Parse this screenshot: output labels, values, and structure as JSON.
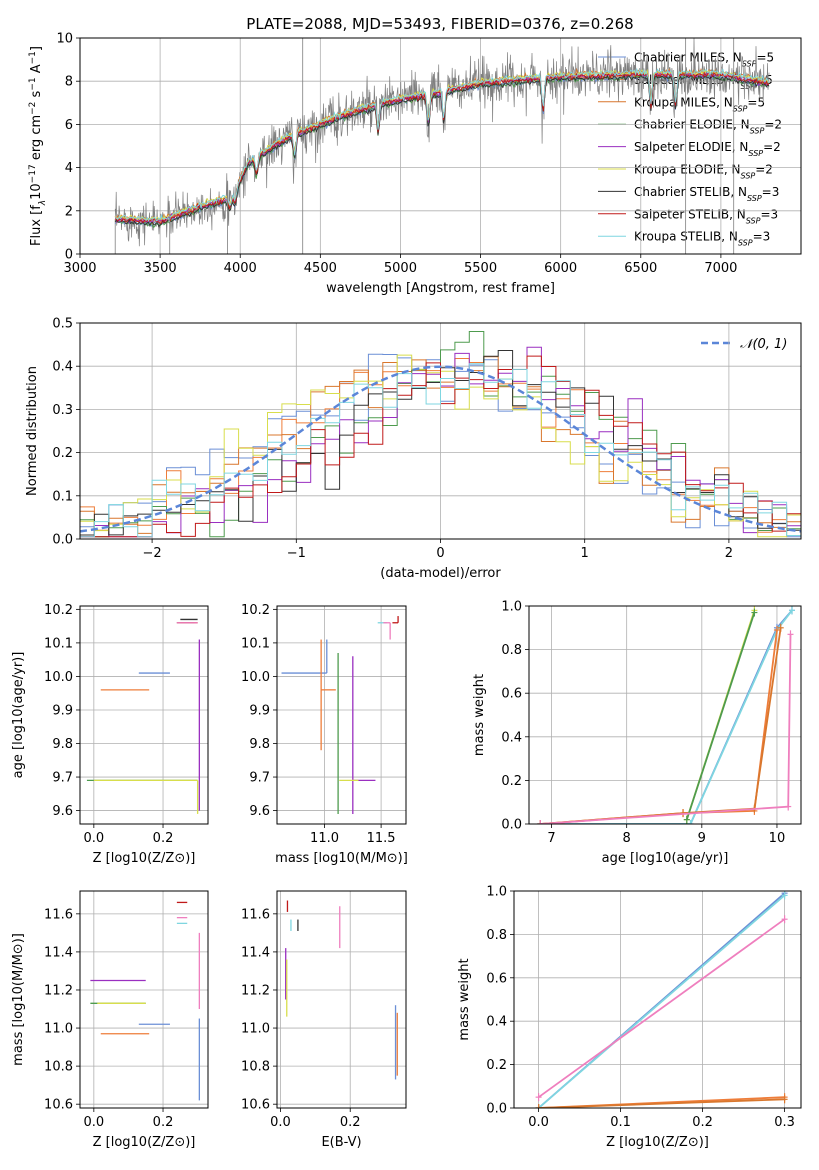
{
  "figure": {
    "title": "PLATE=2088, MJD=53493, FIBERID=0376, z=0.268"
  },
  "models": [
    {
      "name": "Chabrier MILES",
      "nssp": "5",
      "color": "#6b8fd6"
    },
    {
      "name": "Salpeter MILES",
      "nssp": "5",
      "color": "#ee7d3a"
    },
    {
      "name": "Kroupa MILES",
      "nssp": "5",
      "color": "#d9772d"
    },
    {
      "name": "Chabrier ELODIE",
      "nssp": "2",
      "color": "#4e9b4e"
    },
    {
      "name": "Salpeter ELODIE",
      "nssp": "2",
      "color": "#9a2fc0"
    },
    {
      "name": "Kroupa ELODIE",
      "nssp": "2",
      "color": "#d8de4c"
    },
    {
      "name": "Chabrier STELIB",
      "nssp": "3",
      "color": "#333333"
    },
    {
      "name": "Salpeter STELIB",
      "nssp": "3",
      "color": "#c01a1a"
    },
    {
      "name": "Kroupa STELIB",
      "nssp": "3",
      "color": "#7fd6e0"
    }
  ],
  "chart_data": [
    {
      "id": "spectrum",
      "type": "line",
      "xlabel": "wavelength [Angstrom, rest frame]",
      "ylabel_parts": [
        "Flux [f",
        "λ",
        "10",
        "−17",
        " erg cm",
        "−2",
        " s",
        "−1",
        " A",
        "−1",
        "]"
      ],
      "xlim": [
        3000,
        7500
      ],
      "ylim": [
        0,
        10
      ],
      "xticks": [
        3000,
        3500,
        4000,
        4500,
        5000,
        5500,
        6000,
        6500,
        7000
      ],
      "yticks": [
        0,
        2,
        4,
        6,
        8,
        10
      ],
      "grid": true,
      "legend_position": "lower-right",
      "data_color": "#7f7f7f",
      "continuum_knots": [
        [
          3220,
          1.6
        ],
        [
          3500,
          1.5
        ],
        [
          3800,
          2.3
        ],
        [
          3950,
          2.6
        ],
        [
          4050,
          4.2
        ],
        [
          4300,
          5.4
        ],
        [
          4600,
          6.3
        ],
        [
          4900,
          7.0
        ],
        [
          5200,
          7.4
        ],
        [
          5500,
          7.9
        ],
        [
          6000,
          8.2
        ],
        [
          6500,
          8.3
        ],
        [
          7000,
          8.3
        ],
        [
          7300,
          7.9
        ]
      ]
    },
    {
      "id": "residual-histogram",
      "type": "line",
      "xlabel": "(data-model)/error",
      "ylabel": "Normed distribution",
      "xlim": [
        -2.5,
        2.5
      ],
      "ylim": [
        0,
        0.5
      ],
      "xticks": [
        -2,
        -1,
        0,
        1,
        2
      ],
      "yticks": [
        0.0,
        0.1,
        0.2,
        0.3,
        0.4,
        0.5
      ],
      "grid": true,
      "legend": "𝒩(0, 1)",
      "legend_position": "top-right",
      "gauss_color": "#5b86d8",
      "bins": 50
    },
    {
      "id": "age-vs-metallicity",
      "type": "scatter",
      "xlabel": "Z [log10(Z/Z⊙)]",
      "ylabel": "age  [log10(age/yr)]",
      "xlim": [
        -0.04,
        0.33
      ],
      "ylim": [
        9.56,
        10.21
      ],
      "xticks": [
        0.0,
        0.2
      ],
      "yticks": [
        9.6,
        9.7,
        9.8,
        9.9,
        10.0,
        10.1,
        10.2
      ],
      "grid": true,
      "points": [
        {
          "x": 0.22,
          "y": 10.01,
          "xerr": [
            0.09,
            0.0
          ],
          "yerr": [
            0.0,
            0.0
          ],
          "color": "#6b8fd6"
        },
        {
          "x": 0.16,
          "y": 9.96,
          "xerr": [
            0.14,
            0.0
          ],
          "yerr": [
            0.0,
            0.0
          ],
          "color": "#ee7d3a"
        },
        {
          "x": 0.3,
          "y": 9.69,
          "xerr": [
            0.32,
            0.0
          ],
          "yerr": [
            0.0,
            0.0
          ],
          "color": "#4e9b4e"
        },
        {
          "x": 0.3,
          "y": 9.69,
          "xerr": [
            0.3,
            0.0
          ],
          "yerr": [
            0.1,
            0.0
          ],
          "color": "#d8de4c"
        },
        {
          "x": 0.3,
          "y": 10.17,
          "xerr": [
            0.05,
            0.0
          ],
          "yerr": [
            0.0,
            0.0
          ],
          "color": "#333333"
        },
        {
          "x": 0.29,
          "y": 10.16,
          "xerr": [
            0.05,
            0.0
          ],
          "yerr": [
            0.0,
            0.0
          ],
          "color": "#7fd6e0"
        },
        {
          "x": 0.3,
          "y": 10.16,
          "xerr": [
            0.06,
            0.0
          ],
          "yerr": [
            0.0,
            0.0
          ],
          "color": "#c01a1a"
        },
        {
          "x": 0.3,
          "y": 10.16,
          "xerr": [
            0.06,
            0.0
          ],
          "yerr": [
            0.0,
            0.0
          ],
          "color": "#ef7fbe"
        },
        {
          "x": 0.305,
          "y": 10.0,
          "xerr": [
            0.0,
            0.0
          ],
          "yerr": [
            0.4,
            0.11
          ],
          "color": "#9a2fc0"
        }
      ]
    },
    {
      "id": "age-vs-mass",
      "type": "scatter",
      "xlabel": "mass [log10(M/M⊙)]",
      "ylabel": "",
      "xlim": [
        10.58,
        11.72
      ],
      "ylim": [
        9.56,
        10.21
      ],
      "xticks": [
        11.0,
        11.5
      ],
      "yticks": [
        9.6,
        9.7,
        9.8,
        9.9,
        10.0,
        10.1,
        10.2
      ],
      "grid": true,
      "points": [
        {
          "x": 11.02,
          "y": 10.01,
          "xerr": [
            0.4,
            0.0
          ],
          "yerr": [
            0.0,
            0.1
          ],
          "color": "#6b8fd6"
        },
        {
          "x": 10.97,
          "y": 9.96,
          "xerr": [
            0.0,
            0.13
          ],
          "yerr": [
            0.18,
            0.15
          ],
          "color": "#ee7d3a"
        },
        {
          "x": 11.12,
          "y": 9.69,
          "xerr": [
            0.0,
            0.0
          ],
          "yerr": [
            0.1,
            0.38
          ],
          "color": "#4e9b4e"
        },
        {
          "x": 11.25,
          "y": 9.69,
          "xerr": [
            0.0,
            0.2
          ],
          "yerr": [
            0.1,
            0.37
          ],
          "color": "#9a2fc0"
        },
        {
          "x": 11.13,
          "y": 9.69,
          "xerr": [
            0.0,
            0.17
          ],
          "yerr": [
            0.0,
            0.0
          ],
          "color": "#d8de4c"
        },
        {
          "x": 11.55,
          "y": 10.16,
          "xerr": [
            0.08,
            0.0
          ],
          "yerr": [
            0.0,
            0.0
          ],
          "color": "#7fd6e0"
        },
        {
          "x": 11.65,
          "y": 10.16,
          "xerr": [
            0.05,
            0.0
          ],
          "yerr": [
            0.0,
            0.02
          ],
          "color": "#c01a1a"
        },
        {
          "x": 11.58,
          "y": 10.16,
          "xerr": [
            0.06,
            0.0
          ],
          "yerr": [
            0.05,
            0.0
          ],
          "color": "#ef7fbe"
        }
      ]
    },
    {
      "id": "mass-weight-vs-age",
      "type": "line",
      "xlabel": "age  [log10(age/yr)]",
      "ylabel": "mass weight",
      "xlim": [
        6.7,
        10.32
      ],
      "ylim": [
        0,
        1
      ],
      "xticks": [
        7,
        8,
        9,
        10
      ],
      "yticks": [
        0.0,
        0.2,
        0.4,
        0.6,
        0.8,
        1.0
      ],
      "grid": true,
      "series": [
        {
          "color": "#6b8fd6",
          "x": [
            6.85,
            8.85,
            10.0,
            10.2
          ],
          "y": [
            0.0,
            0.0,
            0.9,
            0.98
          ]
        },
        {
          "color": "#7fd6e0",
          "x": [
            6.85,
            8.85,
            10.0,
            10.2
          ],
          "y": [
            0.0,
            0.0,
            0.89,
            0.98
          ]
        },
        {
          "color": "#ee7d3a",
          "x": [
            6.85,
            8.75,
            9.7,
            10.0
          ],
          "y": [
            0.0,
            0.05,
            0.06,
            0.89
          ]
        },
        {
          "color": "#d9772d",
          "x": [
            6.85,
            8.75,
            9.7,
            10.05
          ],
          "y": [
            0.0,
            0.05,
            0.07,
            0.9
          ]
        },
        {
          "color": "#d8de4c",
          "x": [
            8.8,
            9.7
          ],
          "y": [
            0.02,
            0.98
          ]
        },
        {
          "color": "#4e9b4e",
          "x": [
            8.8,
            9.7
          ],
          "y": [
            0.02,
            0.97
          ]
        },
        {
          "color": "#ef7fbe",
          "x": [
            6.85,
            10.15,
            10.18
          ],
          "y": [
            0.0,
            0.08,
            0.87
          ]
        }
      ]
    },
    {
      "id": "mass-vs-metallicity",
      "type": "scatter",
      "xlabel": "Z [log10(Z/Z⊙)]",
      "ylabel": "mass [log10(M/M⊙)]",
      "xlim": [
        -0.04,
        0.33
      ],
      "ylim": [
        10.58,
        11.72
      ],
      "xticks": [
        0.0,
        0.2
      ],
      "yticks": [
        10.6,
        10.8,
        11.0,
        11.2,
        11.4,
        11.6
      ],
      "grid": true,
      "points": [
        {
          "x": 0.22,
          "y": 11.02,
          "xerr": [
            0.09,
            0.0
          ],
          "yerr": [
            0.0,
            0.0
          ],
          "color": "#6b8fd6"
        },
        {
          "x": 0.16,
          "y": 10.97,
          "xerr": [
            0.14,
            0.0
          ],
          "yerr": [
            0.0,
            0.0
          ],
          "color": "#ee7d3a"
        },
        {
          "x": 0.15,
          "y": 11.25,
          "xerr": [
            0.16,
            0.0
          ],
          "yerr": [
            0.0,
            0.0
          ],
          "color": "#9a2fc0"
        },
        {
          "x": 0.15,
          "y": 11.13,
          "xerr": [
            0.16,
            0.0
          ],
          "yerr": [
            0.0,
            0.0
          ],
          "color": "#4e9b4e"
        },
        {
          "x": 0.15,
          "y": 11.13,
          "xerr": [
            0.14,
            0.0
          ],
          "yerr": [
            0.0,
            0.0
          ],
          "color": "#d8de4c"
        },
        {
          "x": 0.27,
          "y": 11.66,
          "xerr": [
            0.03,
            0.0
          ],
          "yerr": [
            0.0,
            0.0
          ],
          "color": "#c01a1a"
        },
        {
          "x": 0.27,
          "y": 11.58,
          "xerr": [
            0.03,
            0.0
          ],
          "yerr": [
            0.0,
            0.0
          ],
          "color": "#ef7fbe"
        },
        {
          "x": 0.27,
          "y": 11.55,
          "xerr": [
            0.03,
            0.0
          ],
          "yerr": [
            0.0,
            0.0
          ],
          "color": "#7fd6e0"
        },
        {
          "x": 0.305,
          "y": 10.85,
          "xerr": [
            0.0,
            0.0
          ],
          "yerr": [
            0.23,
            0.2
          ],
          "color": "#6b8fd6"
        },
        {
          "x": 0.305,
          "y": 11.3,
          "xerr": [
            0.0,
            0.0
          ],
          "yerr": [
            0.2,
            0.2
          ],
          "color": "#ef7fbe"
        }
      ]
    },
    {
      "id": "mass-vs-extinction",
      "type": "scatter",
      "xlabel": "E(B-V)",
      "ylabel": "",
      "xlim": [
        -0.01,
        0.36
      ],
      "ylim": [
        10.58,
        11.72
      ],
      "xticks": [
        0.0,
        0.2
      ],
      "yticks": [
        10.6,
        10.8,
        11.0,
        11.2,
        11.4,
        11.6
      ],
      "grid": true,
      "points": [
        {
          "x": 0.015,
          "y": 11.3,
          "xerr": [
            0.0,
            0.0
          ],
          "yerr": [
            0.15,
            0.12
          ],
          "color": "#9a2fc0"
        },
        {
          "x": 0.018,
          "y": 11.2,
          "xerr": [
            0.0,
            0.0
          ],
          "yerr": [
            0.14,
            0.16
          ],
          "color": "#d8de4c"
        },
        {
          "x": 0.02,
          "y": 11.64,
          "xerr": [
            0.0,
            0.0
          ],
          "yerr": [
            0.03,
            0.03
          ],
          "color": "#c01a1a"
        },
        {
          "x": 0.03,
          "y": 11.54,
          "xerr": [
            0.0,
            0.0
          ],
          "yerr": [
            0.03,
            0.03
          ],
          "color": "#7fd6e0"
        },
        {
          "x": 0.05,
          "y": 11.54,
          "xerr": [
            0.0,
            0.0
          ],
          "yerr": [
            0.03,
            0.03
          ],
          "color": "#333333"
        },
        {
          "x": 0.17,
          "y": 11.53,
          "xerr": [
            0.0,
            0.0
          ],
          "yerr": [
            0.11,
            0.11
          ],
          "color": "#ef7fbe"
        },
        {
          "x": 0.33,
          "y": 10.95,
          "xerr": [
            0.0,
            0.0
          ],
          "yerr": [
            0.22,
            0.17
          ],
          "color": "#6b8fd6"
        },
        {
          "x": 0.335,
          "y": 10.9,
          "xerr": [
            0.0,
            0.0
          ],
          "yerr": [
            0.15,
            0.18
          ],
          "color": "#ee7d3a"
        }
      ]
    },
    {
      "id": "mass-weight-vs-metallicity",
      "type": "line",
      "xlabel": "Z [log10(Z/Z⊙)]",
      "ylabel": "mass weight",
      "xlim": [
        -0.03,
        0.32
      ],
      "ylim": [
        0,
        1
      ],
      "xticks": [
        0.0,
        0.1,
        0.2,
        0.3
      ],
      "yticks": [
        0.0,
        0.2,
        0.4,
        0.6,
        0.8,
        1.0
      ],
      "grid": true,
      "series": [
        {
          "color": "#6b8fd6",
          "x": [
            0.0,
            0.3
          ],
          "y": [
            0.0,
            0.99
          ]
        },
        {
          "color": "#7fd6e0",
          "x": [
            0.0,
            0.3
          ],
          "y": [
            0.0,
            0.98
          ]
        },
        {
          "color": "#ef7fbe",
          "x": [
            0.0,
            0.3
          ],
          "y": [
            0.05,
            0.87
          ]
        },
        {
          "color": "#ee7d3a",
          "x": [
            0.0,
            0.3
          ],
          "y": [
            0.0,
            0.05
          ]
        },
        {
          "color": "#d9772d",
          "x": [
            0.0,
            0.3
          ],
          "y": [
            0.0,
            0.04
          ]
        }
      ]
    }
  ]
}
